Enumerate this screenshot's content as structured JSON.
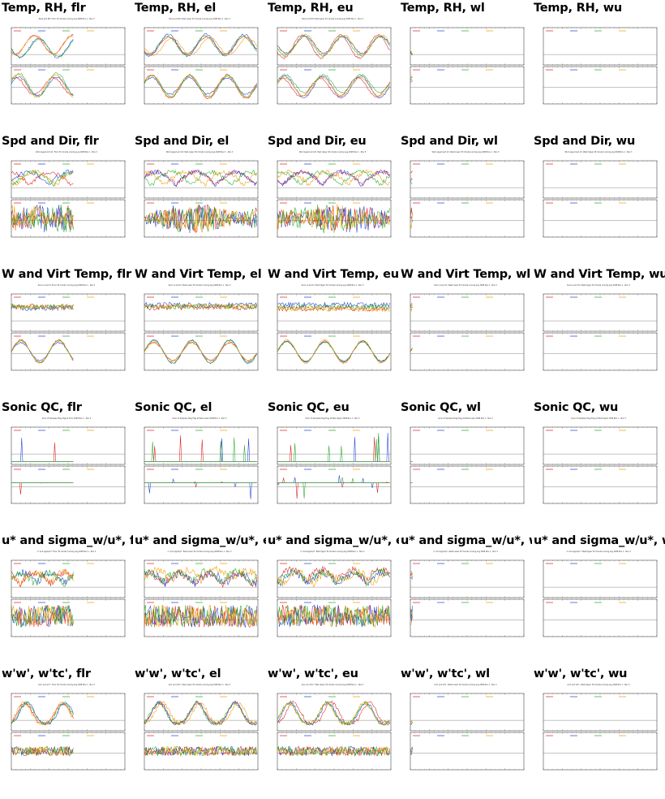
{
  "page": {
    "layout": "thumbnail-grid"
  },
  "series_colors": [
    "#e31a1c",
    "#1f3fd6",
    "#22aa22",
    "#f09a00",
    "#7acc00",
    "#333333"
  ],
  "cells": [
    {
      "title": "Temp, RH, flr",
      "subtitle": "Temp and RH: Floor 30 minute running avg 2008 Nov 1 - Nov 3",
      "kind": "wave",
      "seed": 11,
      "extent": 0.55
    },
    {
      "title": "Temp, RH, el",
      "subtitle": "Temp and RH: East Lower 30 minute running avg 2008 Nov 1 - Nov 3",
      "kind": "wave",
      "seed": 12,
      "extent": 1
    },
    {
      "title": "Temp, RH, eu",
      "subtitle": "Temp and RH: East Upper 30 minute running avg 2008 Nov 1 - Nov 3",
      "kind": "wave",
      "seed": 13,
      "extent": 1
    },
    {
      "title": "Temp, RH, wl",
      "subtitle": "",
      "kind": "wave",
      "seed": 14,
      "extent": 0.03
    },
    {
      "title": "Temp, RH, wu",
      "subtitle": "",
      "kind": "flat",
      "seed": 15,
      "extent": 0
    },
    {
      "title": "Spd and Dir, flr",
      "subtitle": "Wind speed and dir: Floor 30 minute running avg 2008 Nov 1 - Nov 3",
      "kind": "wind",
      "seed": 21,
      "extent": 0.55
    },
    {
      "title": "Spd and Dir, el",
      "subtitle": "Wind speed and dir: East Lower 30 minute running avg 2008 Nov 1 - Nov 3",
      "kind": "wind",
      "seed": 22,
      "extent": 1
    },
    {
      "title": "Spd and Dir, eu",
      "subtitle": "Wind speed and dir: East Upper 30 minute running avg 2008 Nov 1 - Nov 3",
      "kind": "wind",
      "seed": 23,
      "extent": 1
    },
    {
      "title": "Spd and Dir, wl",
      "subtitle": "Wind speed and dir: West Lower 30 minute running avg 2008 Nov 1 - Nov 3",
      "kind": "wind",
      "seed": 24,
      "extent": 0.03
    },
    {
      "title": "Spd and Dir, wu",
      "subtitle": "Wind speed and dir: West Upper 30 minute running avg 2008 Nov 1 - Nov 3",
      "kind": "flat",
      "seed": 25,
      "extent": 0
    },
    {
      "title": "W and Virt Temp, flr",
      "subtitle": "Sonic w and tv: Floor 30 minute running avg 2008 Nov 1 - Nov 3",
      "kind": "wtemp",
      "seed": 31,
      "extent": 0.55
    },
    {
      "title": "W and Virt Temp, el",
      "subtitle": "Sonic w and tv: East Lower 30 minute running avg 2008 Nov 1 - Nov 3",
      "kind": "wtemp",
      "seed": 32,
      "extent": 1
    },
    {
      "title": "W and Virt Temp, eu",
      "subtitle": "Sonic w and tv: East Upper 30 minute running avg 2008 Nov 1 - Nov 3",
      "kind": "wtemp",
      "seed": 33,
      "extent": 1
    },
    {
      "title": "W and Virt Temp, wl",
      "subtitle": "Sonic w and tv: West Lower 30 minute running avg 2008 Nov 1 - Nov 3",
      "kind": "wtemp",
      "seed": 34,
      "extent": 0.03
    },
    {
      "title": "W and Virt Temp, wu",
      "subtitle": "Sonic w and tv: West Upper 30 minute running avg 2008 Nov 1 - Nov 3",
      "kind": "flat",
      "seed": 35,
      "extent": 0
    },
    {
      "title": "Sonic QC, flr",
      "subtitle": "Sonic # Samples Diag Flag at Floor 2008 Nov 1 - Nov 3",
      "kind": "qc",
      "seed": 41,
      "extent": 0.55
    },
    {
      "title": "Sonic QC, el",
      "subtitle": "Sonic # Samples Diag Flag at East Lower 2008 Nov 1 - Nov 3",
      "kind": "qc",
      "seed": 42,
      "extent": 1
    },
    {
      "title": "Sonic QC, eu",
      "subtitle": "Sonic # Samples Diag Flag at East Upper 2008 Nov 1 - Nov 3",
      "kind": "qc",
      "seed": 43,
      "extent": 1
    },
    {
      "title": "Sonic QC, wl",
      "subtitle": "Sonic # Samples Diag Flag at West Lower 2008 Nov 1 - Nov 3",
      "kind": "qc",
      "seed": 44,
      "extent": 0.03
    },
    {
      "title": "Sonic QC, wu",
      "subtitle": "Sonic # Samples Diag Flag at West Upper 2008 Nov 1 - Nov 3",
      "kind": "flat",
      "seed": 45,
      "extent": 0
    },
    {
      "title": "u* and sigma_w/u*, flr",
      "subtitle": "u* and sigma/u*: Floor 30 minute running avg 2008 Nov 1 - Nov 3",
      "kind": "ustar",
      "seed": 51,
      "extent": 0.55
    },
    {
      "title": "u* and sigma_w/u*, el",
      "subtitle": "u* and sigma/u*: East Lower 30 minute running avg 2008 Nov 1 - Nov 3",
      "kind": "ustar",
      "seed": 52,
      "extent": 1
    },
    {
      "title": "u* and sigma_w/u*, eu",
      "subtitle": "u* and sigma/u*: East Upper 30 minute running avg 2008 Nov 1 - Nov 3",
      "kind": "ustar",
      "seed": 53,
      "extent": 1
    },
    {
      "title": "u* and sigma_w/u*, wl",
      "subtitle": "u* and sigma/u*: West Lower 30 minute running avg 2008 Nov 1 - Nov 3",
      "kind": "ustar",
      "seed": 54,
      "extent": 0.03
    },
    {
      "title": "u* and sigma_w/u*, wu",
      "subtitle": "u* and sigma/u*: West Upper 30 minute running avg 2008 Nov 1 - Nov 3",
      "kind": "flat",
      "seed": 55,
      "extent": 0
    },
    {
      "title": "w'w', w'tc', flr",
      "subtitle": "w'w' and w'tc': Floor 30 minute running avg 2008 Nov 1 - Nov 3",
      "kind": "flux",
      "seed": 61,
      "extent": 0.55
    },
    {
      "title": "w'w', w'tc', el",
      "subtitle": "w'w' and w'tc': East Lower 30 minute running avg 2008 Nov 1 - Nov 3",
      "kind": "flux",
      "seed": 62,
      "extent": 1
    },
    {
      "title": "w'w', w'tc', eu",
      "subtitle": "w'w' and w'tc': East Upper 30 minute running avg 2008 Nov 1 - Nov 3",
      "kind": "flux",
      "seed": 63,
      "extent": 1
    },
    {
      "title": "w'w', w'tc', wl",
      "subtitle": "w'w' and w'tc': West Lower 30 minute running avg 2008 Nov 1 - Nov 3",
      "kind": "flux",
      "seed": 64,
      "extent": 0.03
    },
    {
      "title": "w'w', w'tc', wu",
      "subtitle": "w'w' and w'tc': West Upper 30 minute running avg 2008 Nov 1 - Nov 3",
      "kind": "flat",
      "seed": 65,
      "extent": 0
    }
  ]
}
